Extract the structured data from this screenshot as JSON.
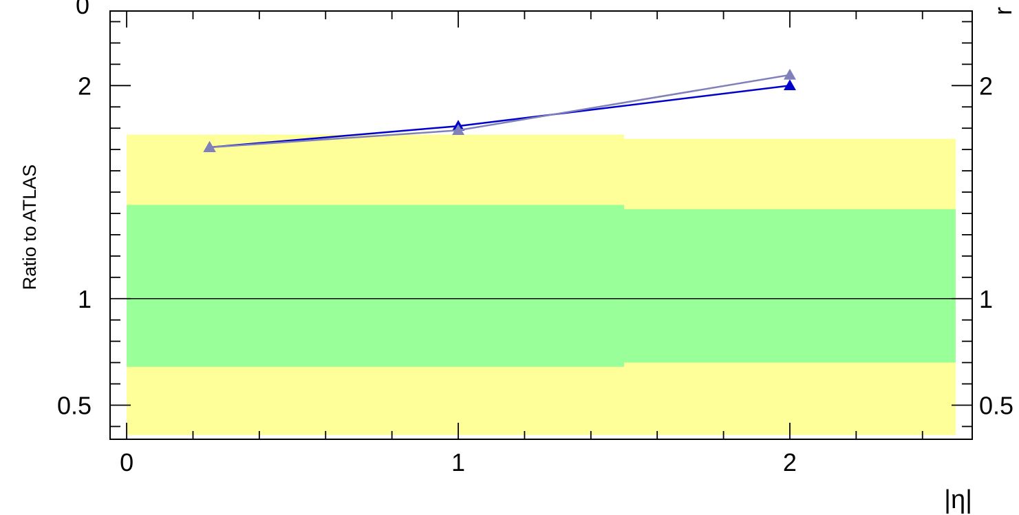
{
  "chart_data": {
    "type": "line",
    "title": "",
    "xlabel": "|η|",
    "ylabel": "Ratio to ATLAS",
    "xlim": [
      -0.05,
      2.55
    ],
    "ylim": [
      0.34,
      2.35
    ],
    "y_scale": "linear",
    "reference_line": 1,
    "x_tick_labels": [
      "0",
      "1",
      "2"
    ],
    "x_ticks": [
      0,
      1,
      2
    ],
    "y_tick_labels": [
      "0.5",
      "1",
      "2"
    ],
    "y_ticks": [
      0.5,
      1,
      2
    ],
    "partial_top_label": "0",
    "partial_right_label": "r",
    "uncertainty_bands": [
      {
        "name": "outer",
        "color": "#ffff99",
        "bins": [
          {
            "x0": 0.0,
            "x1": 1.5,
            "low": 0.36,
            "high": 1.77
          },
          {
            "x0": 1.5,
            "x1": 2.5,
            "low": 0.36,
            "high": 1.75
          }
        ]
      },
      {
        "name": "inner",
        "color": "#99ff99",
        "bins": [
          {
            "x0": 0.0,
            "x1": 1.5,
            "low": 0.68,
            "high": 1.44
          },
          {
            "x0": 1.5,
            "x1": 2.5,
            "low": 0.7,
            "high": 1.42
          }
        ]
      }
    ],
    "series": [
      {
        "color": "#0000cc",
        "marker": "triangle",
        "x": [
          0.25,
          1.0,
          2.0
        ],
        "y": [
          1.71,
          1.81,
          2.0
        ]
      },
      {
        "color": "#8080bb",
        "marker": "triangle",
        "x": [
          0.25,
          1.0,
          2.0
        ],
        "y": [
          1.71,
          1.79,
          2.05
        ]
      }
    ]
  }
}
